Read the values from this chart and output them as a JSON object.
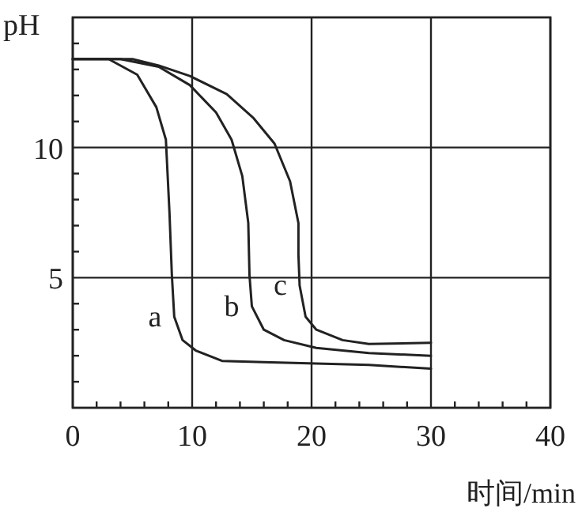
{
  "chart_data": {
    "type": "line",
    "xlabel": "时间/min",
    "ylabel": "pH",
    "xlim": [
      0,
      40
    ],
    "ylim": [
      0,
      15
    ],
    "xticks": [
      0,
      {
        "value": 2,
        "label": null
      },
      {
        "value": 4,
        "label": null
      },
      {
        "value": 6,
        "label": null
      },
      {
        "value": 8,
        "label": null
      },
      10,
      {
        "value": 12,
        "label": null
      },
      {
        "value": 14,
        "label": null
      },
      {
        "value": 16,
        "label": null
      },
      {
        "value": 18,
        "label": null
      },
      20,
      {
        "value": 22,
        "label": null
      },
      {
        "value": 24,
        "label": null
      },
      {
        "value": 26,
        "label": null
      },
      {
        "value": 28,
        "label": null
      },
      30,
      {
        "value": 32,
        "label": null
      },
      {
        "value": 34,
        "label": null
      },
      {
        "value": 36,
        "label": null
      },
      {
        "value": 38,
        "label": null
      },
      40
    ],
    "yticks": [
      {
        "value": 1,
        "label": null
      },
      {
        "value": 2,
        "label": null
      },
      {
        "value": 3,
        "label": null
      },
      {
        "value": 4,
        "label": null
      },
      5,
      {
        "value": 6,
        "label": null
      },
      {
        "value": 7,
        "label": null
      },
      {
        "value": 8,
        "label": null
      },
      {
        "value": 9,
        "label": null
      },
      10,
      {
        "value": 11,
        "label": null
      },
      {
        "value": 12,
        "label": null
      },
      {
        "value": 13,
        "label": null
      },
      {
        "value": 14,
        "label": null
      }
    ],
    "grid": true,
    "marker": "none",
    "line_style": "solid",
    "series": [
      {
        "name": "a",
        "color": "#222222",
        "x": [
          0,
          3,
          5.4,
          7.0,
          7.8,
          8.1,
          8.3,
          8.5,
          9.2,
          10.3,
          12.5,
          16,
          20.4,
          24.8,
          30
        ],
        "values": [
          13.4,
          13.4,
          12.8,
          11.55,
          10.3,
          7.5,
          5.1,
          3.5,
          2.6,
          2.2,
          1.8,
          1.75,
          1.7,
          1.65,
          1.5
        ]
      },
      {
        "name": "b",
        "color": "#222222",
        "x": [
          0,
          4,
          7.2,
          9.8,
          12,
          13.3,
          14.2,
          14.7,
          14.8,
          15.0,
          16,
          17.7,
          20.4,
          24.8,
          30
        ],
        "values": [
          13.4,
          13.4,
          13.1,
          12.4,
          11.35,
          10.3,
          8.9,
          7.1,
          5.1,
          3.9,
          3.0,
          2.6,
          2.3,
          2.1,
          2.0
        ]
      },
      {
        "name": "c",
        "color": "#222222",
        "x": [
          0,
          5,
          7.2,
          9.8,
          12.9,
          15.1,
          16.9,
          18.2,
          18.9,
          18.9,
          19.0,
          19.5,
          20.4,
          22.6,
          24.8,
          30
        ],
        "values": [
          13.4,
          13.4,
          13.15,
          12.75,
          12.05,
          11.15,
          10.15,
          8.7,
          7.1,
          5.9,
          4.7,
          3.5,
          3.0,
          2.6,
          2.45,
          2.5
        ]
      }
    ]
  }
}
